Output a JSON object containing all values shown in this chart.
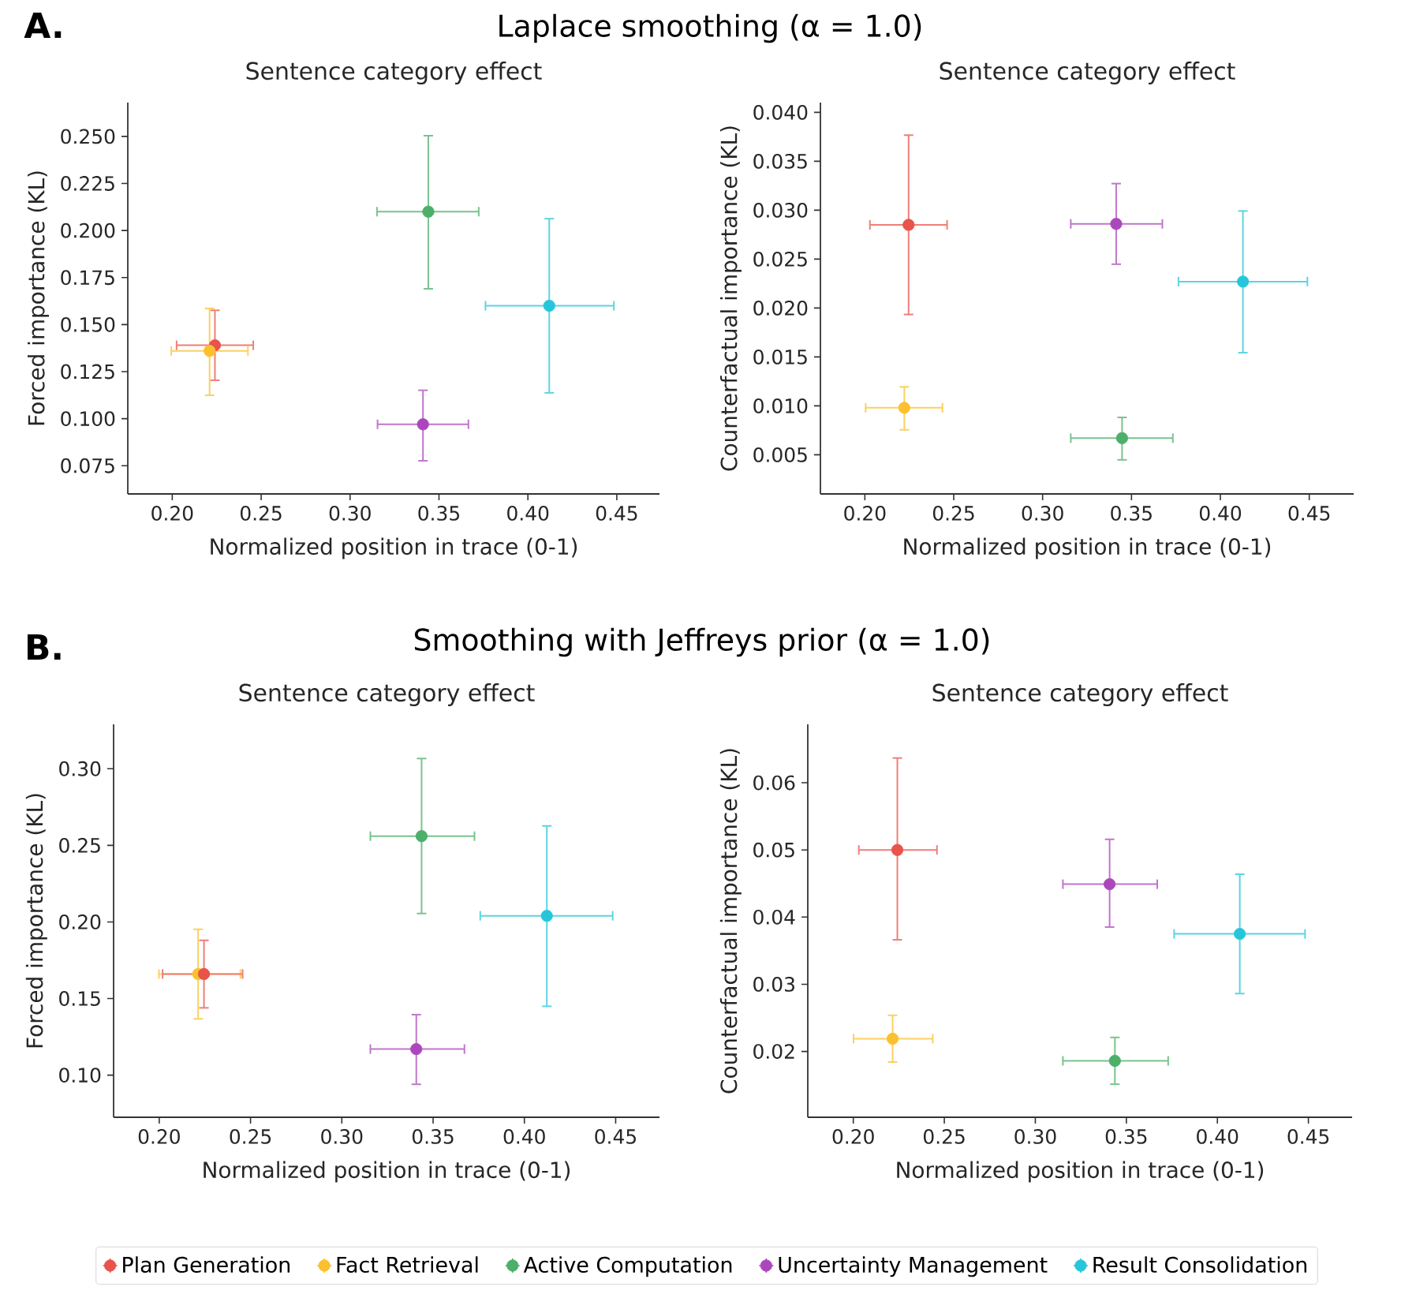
{
  "chart_data": [
    {
      "type": "scatter",
      "title": "Sentence category effect",
      "xlabel": "Normalized position in trace (0-1)",
      "ylabel": "Forced importance (KL)",
      "annotations": [
        "A.",
        "Laplace smoothing (α = 1.0)"
      ],
      "xlim": [
        0.175,
        0.474
      ],
      "ylim": [
        0.06,
        0.268
      ],
      "xticks": [
        {
          "value": 0.2,
          "label": "0.20"
        },
        {
          "value": 0.25,
          "label": "0.25"
        },
        {
          "value": 0.3,
          "label": "0.30"
        },
        {
          "value": 0.35,
          "label": "0.35"
        },
        {
          "value": 0.4,
          "label": "0.40"
        },
        {
          "value": 0.45,
          "label": "0.45"
        }
      ],
      "yticks": [
        {
          "value": 0.075,
          "label": "0.075"
        },
        {
          "value": 0.1,
          "label": "0.100"
        },
        {
          "value": 0.125,
          "label": "0.125"
        },
        {
          "value": 0.15,
          "label": "0.150"
        },
        {
          "value": 0.175,
          "label": "0.175"
        },
        {
          "value": 0.2,
          "label": "0.200"
        },
        {
          "value": 0.225,
          "label": "0.225"
        },
        {
          "value": 0.25,
          "label": "0.250"
        }
      ],
      "series": [
        {
          "color": "#e8534a",
          "x": [
            0.224
          ],
          "values": [
            0.139
          ],
          "errors": [
            [
              0.12,
              0.158
            ]
          ],
          "xerrors": [
            [
              0.202,
              0.246
            ]
          ]
        },
        {
          "color": "#fbc02d",
          "x": [
            0.221
          ],
          "values": [
            0.136
          ],
          "errors": [
            [
              0.112,
              0.159
            ]
          ],
          "xerrors": [
            [
              0.199,
              0.243
            ]
          ]
        },
        {
          "color": "#4caf6a",
          "x": [
            0.344
          ],
          "values": [
            0.21
          ],
          "errors": [
            [
              0.1686,
              0.2508
            ]
          ],
          "xerrors": [
            [
              0.3147,
              0.3728
            ]
          ]
        },
        {
          "color": "#ab47bc",
          "x": [
            0.341
          ],
          "values": [
            0.097
          ],
          "errors": [
            [
              0.0772,
              0.1155
            ]
          ],
          "xerrors": [
            [
              0.315,
              0.367
            ]
          ]
        },
        {
          "color": "#26c6da",
          "x": [
            0.412
          ],
          "values": [
            0.16
          ],
          "errors": [
            [
              0.1133,
              0.2067
            ]
          ],
          "xerrors": [
            [
              0.3757,
              0.4488
            ]
          ]
        }
      ]
    },
    {
      "type": "scatter",
      "title": "Sentence category effect",
      "xlabel": "Normalized position in trace (0-1)",
      "ylabel": "Counterfactual importance (KL)",
      "xlim": [
        0.175,
        0.475
      ],
      "ylim": [
        0.001,
        0.041
      ],
      "xticks": [
        {
          "value": 0.2,
          "label": "0.20"
        },
        {
          "value": 0.25,
          "label": "0.25"
        },
        {
          "value": 0.3,
          "label": "0.30"
        },
        {
          "value": 0.35,
          "label": "0.35"
        },
        {
          "value": 0.4,
          "label": "0.40"
        },
        {
          "value": 0.45,
          "label": "0.45"
        }
      ],
      "yticks": [
        {
          "value": 0.005,
          "label": "0.005"
        },
        {
          "value": 0.01,
          "label": "0.010"
        },
        {
          "value": 0.015,
          "label": "0.015"
        },
        {
          "value": 0.02,
          "label": "0.020"
        },
        {
          "value": 0.025,
          "label": "0.025"
        },
        {
          "value": 0.03,
          "label": "0.030"
        },
        {
          "value": 0.035,
          "label": "0.035"
        },
        {
          "value": 0.04,
          "label": "0.040"
        }
      ],
      "series": [
        {
          "color": "#e8534a",
          "x": [
            0.2246
          ],
          "values": [
            0.0285
          ],
          "errors": [
            [
              0.01926,
              0.03775
            ]
          ],
          "xerrors": [
            [
              0.2024,
              0.2467
            ]
          ]
        },
        {
          "color": "#fbc02d",
          "x": [
            0.2222
          ],
          "values": [
            0.0098
          ],
          "errors": [
            [
              0.00747,
              0.01202
            ]
          ],
          "xerrors": [
            [
              0.2,
              0.2441
            ]
          ]
        },
        {
          "color": "#4caf6a",
          "x": [
            0.3447
          ],
          "values": [
            0.0067
          ],
          "errors": [
            [
              0.0044,
              0.0089
            ]
          ],
          "xerrors": [
            [
              0.3154,
              0.3737
            ]
          ]
        },
        {
          "color": "#ab47bc",
          "x": [
            0.3414
          ],
          "values": [
            0.0286
          ],
          "errors": [
            [
              0.0244,
              0.0328
            ]
          ],
          "xerrors": [
            [
              0.3154,
              0.3678
            ]
          ]
        },
        {
          "color": "#26c6da",
          "x": [
            0.4127
          ],
          "values": [
            0.0227
          ],
          "errors": [
            [
              0.01535,
              0.03
            ]
          ],
          "xerrors": [
            [
              0.376,
              0.4494
            ]
          ]
        }
      ]
    },
    {
      "type": "scatter",
      "title": "Sentence category effect",
      "xlabel": "Normalized position in trace (0-1)",
      "ylabel": "Forced importance (KL)",
      "annotations": [
        "B.",
        "Smoothing with Jeffreys prior (α = 1.0)"
      ],
      "xlim": [
        0.175,
        0.474
      ],
      "ylim": [
        0.0725,
        0.329
      ],
      "xticks": [
        {
          "value": 0.2,
          "label": "0.20"
        },
        {
          "value": 0.25,
          "label": "0.25"
        },
        {
          "value": 0.3,
          "label": "0.30"
        },
        {
          "value": 0.35,
          "label": "0.35"
        },
        {
          "value": 0.4,
          "label": "0.40"
        },
        {
          "value": 0.45,
          "label": "0.45"
        }
      ],
      "yticks": [
        {
          "value": 0.1,
          "label": "0.10"
        },
        {
          "value": 0.15,
          "label": "0.15"
        },
        {
          "value": 0.2,
          "label": "0.20"
        },
        {
          "value": 0.25,
          "label": "0.25"
        },
        {
          "value": 0.3,
          "label": "0.30"
        }
      ],
      "series": [
        {
          "color": "#fbc02d",
          "x": [
            0.2213
          ],
          "values": [
            0.166
          ],
          "errors": [
            [
              0.1362,
              0.1957
            ]
          ],
          "xerrors": [
            [
              0.1994,
              0.2449
            ]
          ]
        },
        {
          "color": "#e8534a",
          "x": [
            0.2245
          ],
          "values": [
            0.166
          ],
          "errors": [
            [
              0.1434,
              0.1885
            ]
          ],
          "xerrors": [
            [
              0.2014,
              0.2461
            ]
          ]
        },
        {
          "color": "#4caf6a",
          "x": [
            0.3437
          ],
          "values": [
            0.256
          ],
          "errors": [
            [
              0.205,
              0.3072
            ]
          ],
          "xerrors": [
            [
              0.3152,
              0.3731
            ]
          ]
        },
        {
          "color": "#ab47bc",
          "x": [
            0.3408
          ],
          "values": [
            0.117
          ],
          "errors": [
            [
              0.0935,
              0.14
            ]
          ],
          "xerrors": [
            [
              0.3152,
              0.3676
            ]
          ]
        },
        {
          "color": "#26c6da",
          "x": [
            0.4123
          ],
          "values": [
            0.204
          ],
          "errors": [
            [
              0.1444,
              0.2632
            ]
          ],
          "xerrors": [
            [
              0.3754,
              0.4488
            ]
          ]
        }
      ]
    },
    {
      "type": "scatter",
      "title": "Sentence category effect",
      "xlabel": "Normalized position in trace (0-1)",
      "ylabel": "Counterfactual importance (KL)",
      "legend": "bottom",
      "xlim": [
        0.175,
        0.474
      ],
      "ylim": [
        0.0102,
        0.0687
      ],
      "xticks": [
        {
          "value": 0.2,
          "label": "0.20"
        },
        {
          "value": 0.25,
          "label": "0.25"
        },
        {
          "value": 0.3,
          "label": "0.30"
        },
        {
          "value": 0.35,
          "label": "0.35"
        },
        {
          "value": 0.4,
          "label": "0.40"
        },
        {
          "value": 0.45,
          "label": "0.45"
        }
      ],
      "yticks": [
        {
          "value": 0.02,
          "label": "0.02"
        },
        {
          "value": 0.03,
          "label": "0.03"
        },
        {
          "value": 0.04,
          "label": "0.04"
        },
        {
          "value": 0.05,
          "label": "0.05"
        },
        {
          "value": 0.06,
          "label": "0.06"
        }
      ],
      "series": [
        {
          "name": "Plan Generation",
          "color": "#e8534a",
          "x": [
            0.2242
          ],
          "values": [
            0.05
          ],
          "errors": [
            [
              0.0365,
              0.0638
            ]
          ],
          "xerrors": [
            [
              0.2026,
              0.2464
            ]
          ]
        },
        {
          "name": "Fact Retrieval",
          "color": "#fbc02d",
          "x": [
            0.2216
          ],
          "values": [
            0.0219
          ],
          "errors": [
            [
              0.0183,
              0.0255
            ]
          ],
          "xerrors": [
            [
              0.1997,
              0.2441
            ]
          ]
        },
        {
          "name": "Active Computation",
          "color": "#4caf6a",
          "x": [
            0.3437
          ],
          "values": [
            0.0186
          ],
          "errors": [
            [
              0.015,
              0.0222
            ]
          ],
          "xerrors": [
            [
              0.3147,
              0.3734
            ]
          ]
        },
        {
          "name": "Uncertainty Management",
          "color": "#ab47bc",
          "x": [
            0.3408
          ],
          "values": [
            0.0449
          ],
          "errors": [
            [
              0.0384,
              0.0517
            ]
          ],
          "xerrors": [
            [
              0.3147,
              0.3674
            ]
          ]
        },
        {
          "name": "Result Consolidation",
          "color": "#26c6da",
          "x": [
            0.4123
          ],
          "values": [
            0.0375
          ],
          "errors": [
            [
              0.0285,
              0.0465
            ]
          ],
          "xerrors": [
            [
              0.3758,
              0.4486
            ]
          ]
        }
      ]
    }
  ]
}
